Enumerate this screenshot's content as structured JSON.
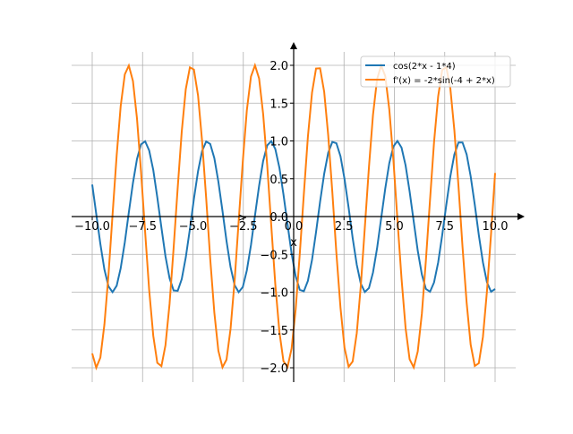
{
  "chart_data": {
    "type": "line",
    "title": "",
    "xlabel": "x",
    "ylabel": "",
    "xlim": [
      -10.5,
      11.5
    ],
    "ylim": [
      -2.2,
      2.3
    ],
    "grid": true,
    "legend_position": "top-right",
    "x_ticks": [
      -10.0,
      -7.5,
      -5.0,
      -2.5,
      0.0,
      2.5,
      5.0,
      7.5,
      10.0
    ],
    "x_tick_labels": [
      "−10.0",
      "−7.5",
      "−5.0",
      "−2.5",
      "0.0",
      "2.5",
      "5.0",
      "7.5",
      "10.0"
    ],
    "y_ticks": [
      -2.0,
      -1.5,
      -1.0,
      -0.5,
      0.0,
      0.5,
      1.0,
      1.5,
      2.0
    ],
    "y_tick_labels": [
      "−2.0",
      "−1.5",
      "−1.0",
      "−0.5",
      "0.0",
      "0.5",
      "1.0",
      "1.5",
      "2.0"
    ],
    "sample_range": [
      -10,
      10
    ],
    "sample_count": 100,
    "series": [
      {
        "name": "cos(2*x - 1*4)",
        "function": "cos(2x-4)",
        "color": "#1f77b4"
      },
      {
        "name": "f'(x) = -2*sin(-4 + 2*x)",
        "function": "-2sin(2x-4)",
        "color": "#ff7f0e"
      }
    ],
    "annotation": ">"
  }
}
